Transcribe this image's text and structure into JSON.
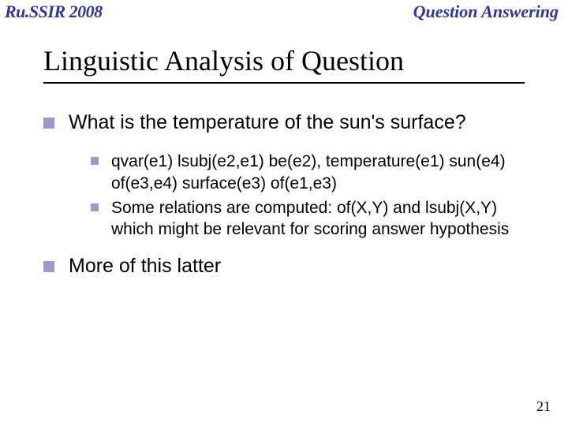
{
  "header": {
    "left": "Ru.SSIR 2008",
    "right": "Question Answering"
  },
  "title": "Linguistic Analysis of Question",
  "bullets": {
    "q": "What is the temperature of the sun's surface?",
    "sub1": "qvar(e1)  lsubj(e2,e1) be(e2), temperature(e1)  sun(e4)  of(e3,e4) surface(e3) of(e1,e3)",
    "sub2": "Some relations are computed: of(X,Y) and lsubj(X,Y) which might be relevant for scoring answer hypothesis",
    "more": "More of this latter"
  },
  "pagenum": "21",
  "colors": {
    "accent": "#333399",
    "bullet": "#9999cc",
    "bg": "#ffffff",
    "text": "#000000"
  }
}
